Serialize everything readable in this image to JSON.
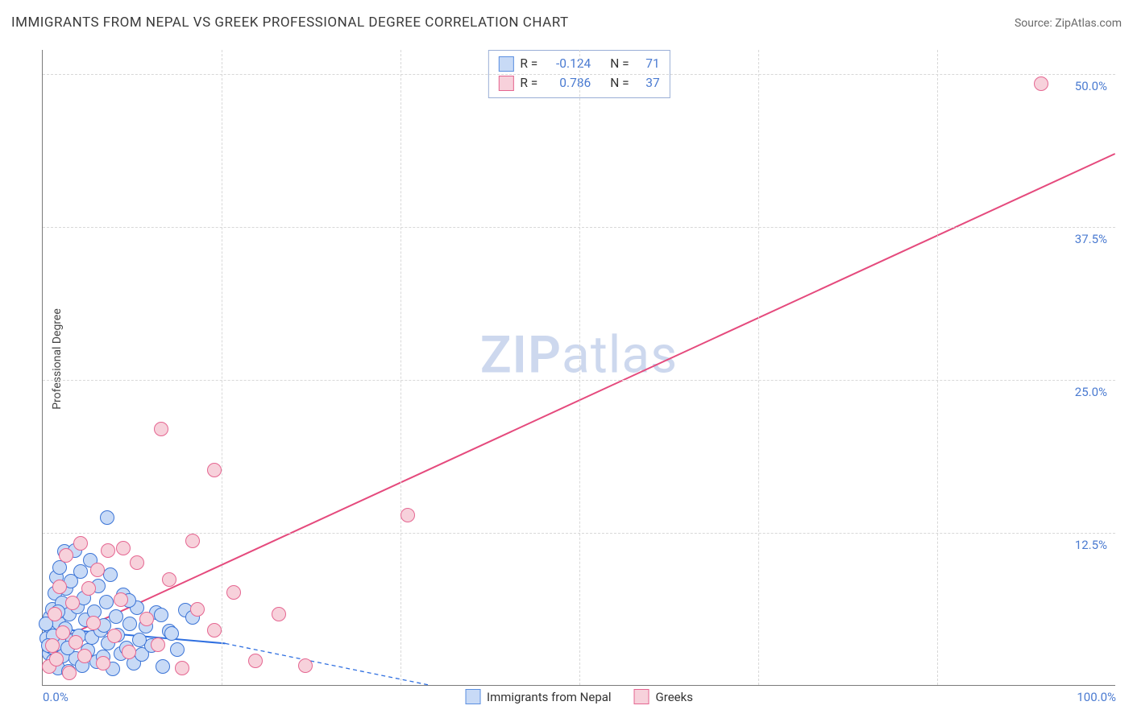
{
  "header": {
    "title": "IMMIGRANTS FROM NEPAL VS GREEK PROFESSIONAL DEGREE CORRELATION CHART",
    "source": "Source: ZipAtlas.com"
  },
  "chart": {
    "type": "scatter",
    "ylabel": "Professional Degree",
    "background_color": "#ffffff",
    "grid_color": "#d8d8d8",
    "axis_color": "#7a7a7a",
    "tick_label_color": "#4b7bd1",
    "tick_fontsize": 15,
    "label_fontsize": 14,
    "xlim": [
      0,
      100
    ],
    "ylim": [
      0,
      52
    ],
    "y_ticks": [
      {
        "v": 12.5,
        "label": "12.5%"
      },
      {
        "v": 25.0,
        "label": "25.0%"
      },
      {
        "v": 37.5,
        "label": "37.5%"
      },
      {
        "v": 50.0,
        "label": "50.0%"
      }
    ],
    "x_ticks": [
      {
        "v": 0,
        "label": "0.0%"
      },
      {
        "v": 100,
        "label": "100.0%"
      }
    ],
    "x_grid": [
      16.67,
      33.33,
      50.0,
      66.67,
      83.33
    ],
    "marker_radius": 9,
    "marker_opacity_fill": 0.32,
    "watermark": {
      "prefix": "ZIP",
      "suffix": "atlas",
      "color": "#cdd8ee",
      "fontsize": 64
    },
    "legend": {
      "border_color": "#9aaed6",
      "rows": [
        {
          "swatch_fill": "#c8daf6",
          "swatch_border": "#5b8fe0",
          "r_label": "R =",
          "r_value": "-0.124",
          "n_label": "N =",
          "n_value": "71"
        },
        {
          "swatch_fill": "#f7d1db",
          "swatch_border": "#e56691",
          "r_label": "R =",
          "r_value": "0.786",
          "n_label": "N =",
          "n_value": "37"
        }
      ]
    },
    "bottom_legend": [
      {
        "swatch_fill": "#c8daf6",
        "swatch_border": "#5b8fe0",
        "label": "Immigrants from Nepal"
      },
      {
        "swatch_fill": "#f7d1db",
        "swatch_border": "#e56691",
        "label": "Greeks"
      }
    ],
    "series": [
      {
        "name": "Immigrants from Nepal",
        "color_fill": "#c8daf6",
        "color_border": "#3b74d6",
        "trend": {
          "x1": 0,
          "y1": 4.7,
          "x2_solid": 17,
          "y2_solid": 3.4,
          "x2_dash": 36,
          "y2_dash": 0,
          "solid_width": 2,
          "dash_pattern": "5,4",
          "color": "#2f6fe0"
        },
        "points": [
          [
            0.4,
            3.8
          ],
          [
            0.5,
            4.9
          ],
          [
            0.6,
            2.6
          ],
          [
            0.7,
            5.5
          ],
          [
            0.8,
            3.1
          ],
          [
            0.9,
            6.2
          ],
          [
            1.0,
            2.0
          ],
          [
            1.1,
            7.5
          ],
          [
            1.2,
            4.3
          ],
          [
            1.3,
            8.8
          ],
          [
            1.4,
            1.4
          ],
          [
            1.5,
            5.1
          ],
          [
            1.6,
            9.6
          ],
          [
            1.7,
            3.3
          ],
          [
            1.8,
            6.7
          ],
          [
            1.9,
            2.4
          ],
          [
            2.0,
            10.9
          ],
          [
            2.1,
            4.6
          ],
          [
            2.2,
            7.9
          ],
          [
            2.4,
            1.1
          ],
          [
            2.5,
            5.8
          ],
          [
            2.6,
            8.5
          ],
          [
            2.8,
            3.6
          ],
          [
            3.0,
            11.0
          ],
          [
            3.1,
            2.2
          ],
          [
            3.2,
            6.4
          ],
          [
            3.4,
            4.0
          ],
          [
            3.5,
            9.3
          ],
          [
            3.7,
            1.6
          ],
          [
            3.8,
            7.1
          ],
          [
            4.0,
            5.3
          ],
          [
            4.2,
            2.8
          ],
          [
            4.4,
            10.2
          ],
          [
            4.6,
            3.9
          ],
          [
            4.8,
            6.0
          ],
          [
            5.0,
            1.9
          ],
          [
            5.2,
            8.1
          ],
          [
            5.4,
            4.5
          ],
          [
            5.6,
            2.3
          ],
          [
            5.9,
            6.8
          ],
          [
            6.1,
            3.4
          ],
          [
            6.3,
            9.0
          ],
          [
            6.5,
            1.3
          ],
          [
            6.8,
            5.6
          ],
          [
            7.0,
            4.1
          ],
          [
            7.3,
            2.6
          ],
          [
            7.5,
            7.4
          ],
          [
            7.8,
            3.0
          ],
          [
            8.1,
            5.0
          ],
          [
            8.5,
            1.8
          ],
          [
            8.8,
            6.3
          ],
          [
            9.2,
            2.5
          ],
          [
            9.6,
            4.8
          ],
          [
            10.1,
            3.2
          ],
          [
            10.6,
            5.9
          ],
          [
            11.2,
            1.5
          ],
          [
            11.8,
            4.4
          ],
          [
            12.5,
            2.9
          ],
          [
            13.3,
            6.1
          ],
          [
            11.0,
            5.7
          ],
          [
            12.0,
            4.2
          ],
          [
            14.0,
            5.5
          ],
          [
            9.0,
            3.7
          ],
          [
            8.0,
            6.9
          ],
          [
            6.0,
            13.7
          ],
          [
            5.7,
            4.9
          ],
          [
            2.3,
            3.0
          ],
          [
            1.45,
            6.0
          ],
          [
            0.95,
            4.0
          ],
          [
            0.55,
            3.2
          ],
          [
            0.3,
            5.0
          ]
        ]
      },
      {
        "name": "Greeks",
        "color_fill": "#f7d1db",
        "color_border": "#e56691",
        "trend": {
          "x1": 0,
          "y1": 3.1,
          "x2_solid": 100,
          "y2_solid": 43.5,
          "color": "#e54a7d",
          "solid_width": 2
        },
        "points": [
          [
            0.6,
            1.5
          ],
          [
            0.9,
            3.2
          ],
          [
            1.1,
            5.8
          ],
          [
            1.3,
            2.1
          ],
          [
            1.6,
            8.0
          ],
          [
            1.9,
            4.3
          ],
          [
            2.2,
            10.6
          ],
          [
            2.5,
            1.0
          ],
          [
            2.8,
            6.7
          ],
          [
            3.1,
            3.5
          ],
          [
            3.5,
            11.6
          ],
          [
            3.9,
            2.4
          ],
          [
            4.3,
            7.9
          ],
          [
            4.7,
            5.1
          ],
          [
            5.1,
            9.4
          ],
          [
            5.6,
            1.8
          ],
          [
            6.1,
            11.0
          ],
          [
            6.7,
            4.0
          ],
          [
            7.3,
            7.0
          ],
          [
            8.0,
            2.7
          ],
          [
            8.8,
            10.0
          ],
          [
            9.7,
            5.4
          ],
          [
            10.7,
            3.3
          ],
          [
            11.8,
            8.6
          ],
          [
            13.0,
            1.4
          ],
          [
            14.4,
            6.2
          ],
          [
            16.0,
            4.5
          ],
          [
            17.8,
            7.6
          ],
          [
            19.8,
            2.0
          ],
          [
            22.0,
            5.8
          ],
          [
            24.5,
            1.6
          ],
          [
            11.0,
            20.9
          ],
          [
            16.0,
            17.6
          ],
          [
            34.0,
            13.9
          ],
          [
            14.0,
            11.8
          ],
          [
            7.5,
            11.2
          ],
          [
            93.0,
            49.2
          ]
        ]
      }
    ]
  }
}
